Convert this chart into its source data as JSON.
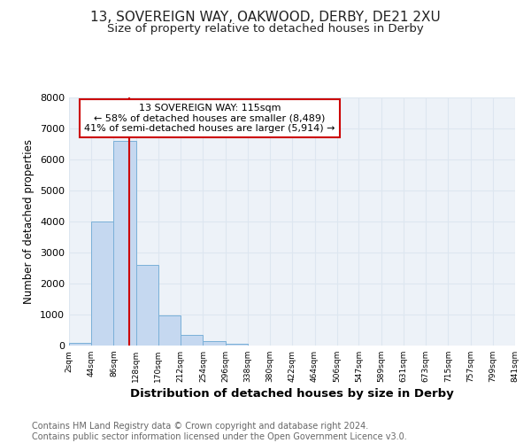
{
  "title": "13, SOVEREIGN WAY, OAKWOOD, DERBY, DE21 2XU",
  "subtitle": "Size of property relative to detached houses in Derby",
  "xlabel": "Distribution of detached houses by size in Derby",
  "ylabel": "Number of detached properties",
  "bin_edges": [
    2,
    44,
    86,
    128,
    170,
    212,
    254,
    296,
    338,
    380,
    422,
    464,
    506,
    547,
    589,
    631,
    673,
    715,
    757,
    799,
    841
  ],
  "bar_heights": [
    75,
    4000,
    6600,
    2600,
    960,
    330,
    130,
    50,
    0,
    0,
    0,
    0,
    0,
    0,
    0,
    0,
    0,
    0,
    0,
    0
  ],
  "bar_color": "#c5d8f0",
  "bar_edge_color": "#7ab0d8",
  "property_size": 115,
  "vline_color": "#cc0000",
  "annotation_box_text": "13 SOVEREIGN WAY: 115sqm\n← 58% of detached houses are smaller (8,489)\n41% of semi-detached houses are larger (5,914) →",
  "annotation_box_color": "#ffffff",
  "annotation_box_edge_color": "#cc0000",
  "ylim": [
    0,
    8000
  ],
  "yticks": [
    0,
    1000,
    2000,
    3000,
    4000,
    5000,
    6000,
    7000,
    8000
  ],
  "tick_labels": [
    "2sqm",
    "44sqm",
    "86sqm",
    "128sqm",
    "170sqm",
    "212sqm",
    "254sqm",
    "296sqm",
    "338sqm",
    "380sqm",
    "422sqm",
    "464sqm",
    "506sqm",
    "547sqm",
    "589sqm",
    "631sqm",
    "673sqm",
    "715sqm",
    "757sqm",
    "799sqm",
    "841sqm"
  ],
  "grid_color": "#dde6f0",
  "bg_color": "#edf2f8",
  "footer_text": "Contains HM Land Registry data © Crown copyright and database right 2024.\nContains public sector information licensed under the Open Government Licence v3.0.",
  "title_fontsize": 11,
  "subtitle_fontsize": 9.5,
  "xlabel_fontsize": 9.5,
  "ylabel_fontsize": 8.5,
  "footer_fontsize": 7.0,
  "annotation_fontsize": 8.0
}
